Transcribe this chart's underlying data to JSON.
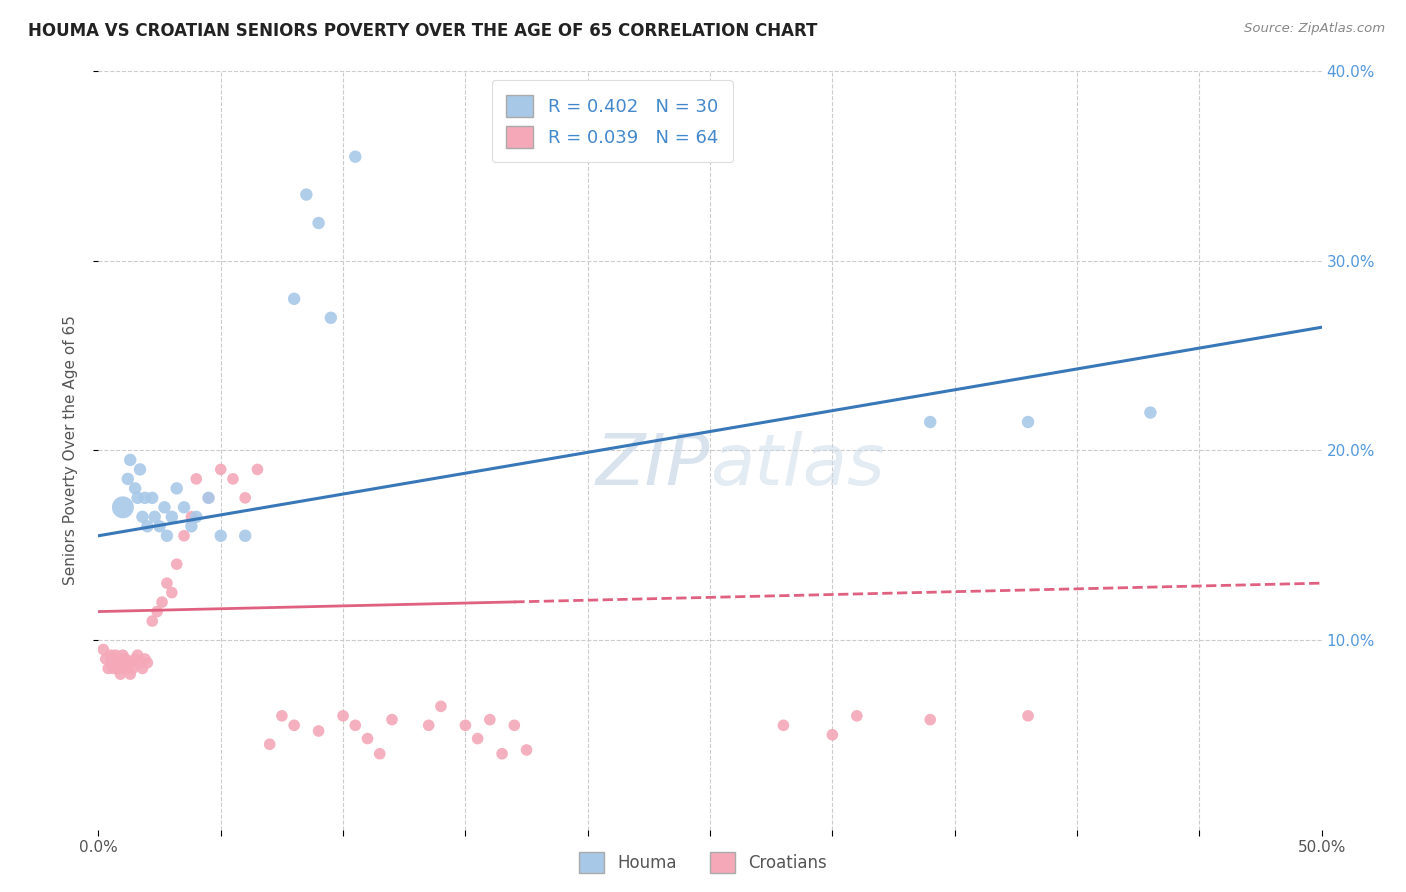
{
  "title": "HOUMA VS CROATIAN SENIORS POVERTY OVER THE AGE OF 65 CORRELATION CHART",
  "source": "Source: ZipAtlas.com",
  "ylabel": "Seniors Poverty Over the Age of 65",
  "xlim": [
    0,
    0.5
  ],
  "ylim": [
    0,
    0.4
  ],
  "houma_R": 0.402,
  "houma_N": 30,
  "croatian_R": 0.039,
  "croatian_N": 64,
  "houma_color": "#a8c8e8",
  "croatian_color": "#f4a8b8",
  "houma_line_color": "#3878b8",
  "croatian_line_color": "#e06080",
  "watermark_color": "#c8d8e8",
  "background_color": "#ffffff",
  "grid_color": "#cccccc",
  "houma_x": [
    0.01,
    0.012,
    0.013,
    0.015,
    0.016,
    0.017,
    0.018,
    0.019,
    0.02,
    0.022,
    0.023,
    0.025,
    0.027,
    0.028,
    0.03,
    0.032,
    0.035,
    0.038,
    0.04,
    0.045,
    0.05,
    0.06,
    0.08,
    0.085,
    0.09,
    0.095,
    0.105,
    0.34,
    0.38,
    0.43
  ],
  "houma_y": [
    0.17,
    0.185,
    0.195,
    0.18,
    0.175,
    0.19,
    0.165,
    0.175,
    0.16,
    0.175,
    0.165,
    0.16,
    0.17,
    0.155,
    0.165,
    0.18,
    0.17,
    0.16,
    0.165,
    0.175,
    0.155,
    0.155,
    0.28,
    0.335,
    0.32,
    0.27,
    0.355,
    0.215,
    0.215,
    0.22
  ],
  "croatian_x": [
    0.002,
    0.003,
    0.004,
    0.005,
    0.005,
    0.006,
    0.006,
    0.007,
    0.007,
    0.008,
    0.008,
    0.009,
    0.009,
    0.01,
    0.01,
    0.011,
    0.011,
    0.012,
    0.012,
    0.013,
    0.013,
    0.014,
    0.015,
    0.016,
    0.017,
    0.018,
    0.019,
    0.02,
    0.022,
    0.024,
    0.026,
    0.028,
    0.03,
    0.032,
    0.035,
    0.038,
    0.04,
    0.045,
    0.05,
    0.055,
    0.06,
    0.065,
    0.07,
    0.075,
    0.08,
    0.09,
    0.1,
    0.105,
    0.11,
    0.115,
    0.12,
    0.135,
    0.14,
    0.15,
    0.155,
    0.16,
    0.165,
    0.17,
    0.175,
    0.28,
    0.3,
    0.31,
    0.34,
    0.38
  ],
  "croatian_y": [
    0.095,
    0.09,
    0.085,
    0.088,
    0.092,
    0.085,
    0.09,
    0.088,
    0.092,
    0.085,
    0.09,
    0.088,
    0.082,
    0.088,
    0.092,
    0.085,
    0.09,
    0.085,
    0.088,
    0.082,
    0.088,
    0.085,
    0.09,
    0.092,
    0.088,
    0.085,
    0.09,
    0.088,
    0.11,
    0.115,
    0.12,
    0.13,
    0.125,
    0.14,
    0.155,
    0.165,
    0.185,
    0.175,
    0.19,
    0.185,
    0.175,
    0.19,
    0.045,
    0.06,
    0.055,
    0.052,
    0.06,
    0.055,
    0.048,
    0.04,
    0.058,
    0.055,
    0.065,
    0.055,
    0.048,
    0.058,
    0.04,
    0.055,
    0.042,
    0.055,
    0.05,
    0.06,
    0.058,
    0.06
  ]
}
